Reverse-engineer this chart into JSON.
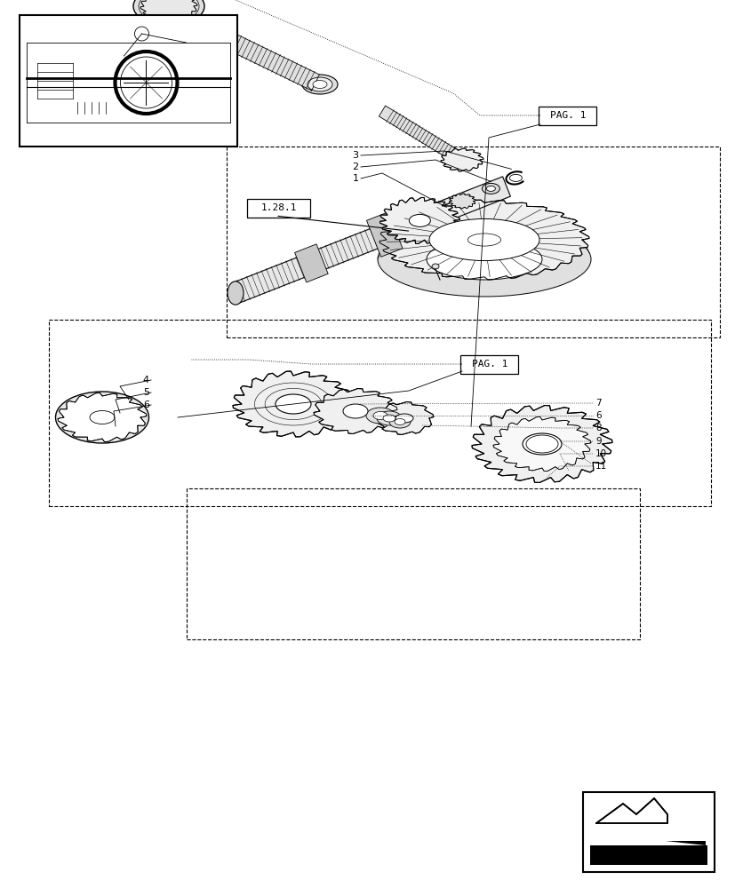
{
  "bg_color": "#ffffff",
  "line_color": "#000000",
  "fig_width": 8.28,
  "fig_height": 10.0,
  "dpi": 100,
  "label_1_28_1": "1.28.1",
  "label_pag1_top": "PAG. 1",
  "label_pag1_bot": "PAG. 1"
}
